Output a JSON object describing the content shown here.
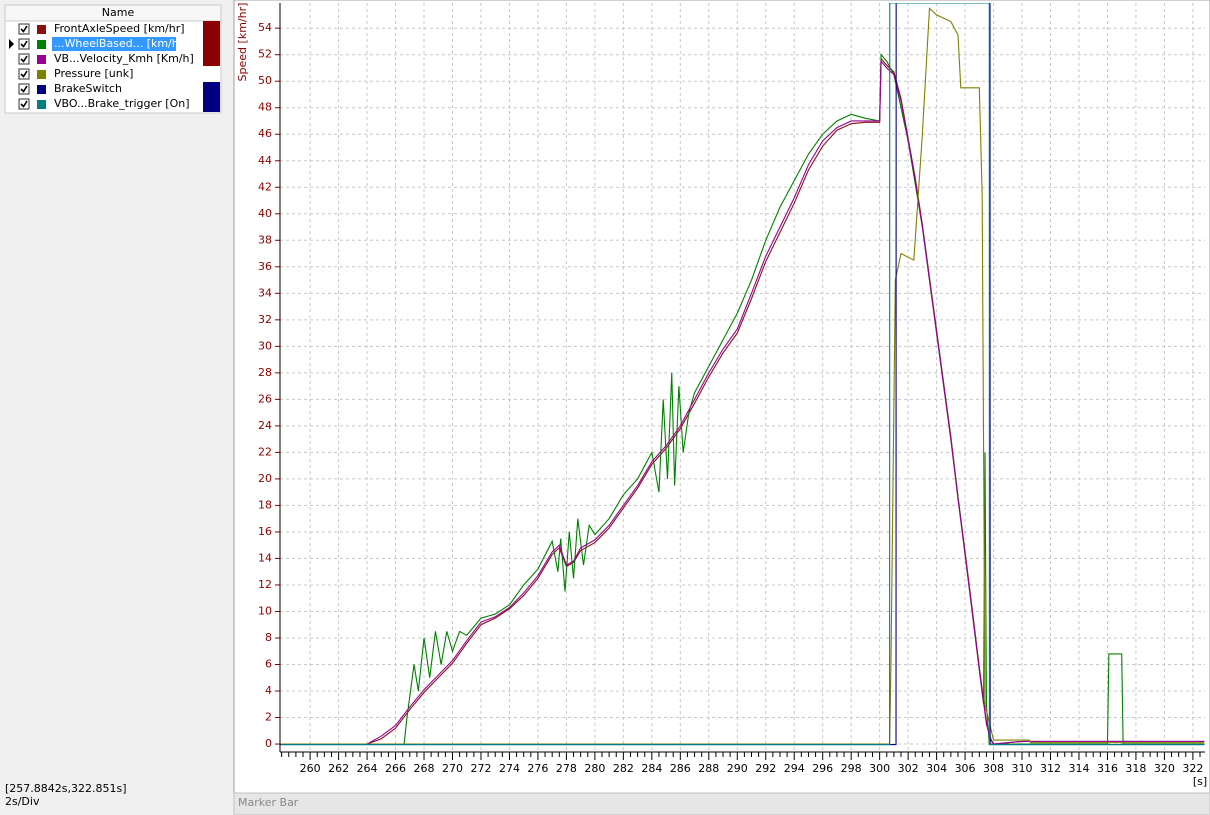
{
  "channel_list_header": "Name",
  "selected_row": 1,
  "status": {
    "range": "[257.8842s,322.851s]",
    "scale": "2s/Div"
  },
  "marker_bar": "Marker Bar",
  "chart_data": {
    "type": "line",
    "y_label": "Speed [km/hr]",
    "x_label": "[s]",
    "axis_color": "#8b0000",
    "grid": true,
    "xlim": [
      257.8842,
      322.851
    ],
    "ylim": [
      -0.6,
      55.9
    ],
    "y2lim": [
      -0.01,
      1
    ],
    "xticks": [
      260,
      262,
      264,
      266,
      268,
      270,
      272,
      274,
      276,
      278,
      280,
      282,
      284,
      286,
      288,
      290,
      292,
      294,
      296,
      298,
      300,
      302,
      304,
      306,
      308,
      310,
      312,
      314,
      316,
      318,
      320,
      322
    ],
    "yticks": [
      0,
      2,
      4,
      6,
      8,
      10,
      12,
      14,
      16,
      18,
      20,
      22,
      24,
      26,
      28,
      30,
      32,
      34,
      36,
      38,
      40,
      42,
      44,
      46,
      48,
      50,
      52,
      54
    ],
    "series": [
      {
        "name": "FrontAxleSpeed [km/hr]",
        "color": "#8b1010",
        "checked": true,
        "x": [
          257.9,
          264,
          265,
          266,
          267,
          268,
          269,
          270,
          271,
          272,
          273,
          274,
          275,
          276,
          277,
          277.5,
          278,
          278.5,
          279,
          280,
          281,
          282,
          283,
          284,
          285,
          286,
          287,
          288,
          289,
          290,
          291,
          292,
          293,
          294,
          295,
          296,
          297,
          298,
          299,
          300,
          300.1,
          300.5,
          301,
          301.5,
          302,
          302.5,
          303,
          303.5,
          304,
          304.5,
          305,
          305.5,
          306,
          306.5,
          307,
          307.5,
          307.8,
          308,
          310,
          322.8
        ],
        "values": [
          0,
          0,
          0.4,
          1.2,
          2.6,
          3.9,
          5.0,
          6.1,
          7.6,
          9.0,
          9.5,
          10.2,
          11.2,
          12.5,
          14.3,
          14.8,
          13.4,
          13.7,
          14.6,
          15.2,
          16.3,
          17.8,
          19.3,
          21.1,
          22.3,
          23.8,
          25.7,
          27.7,
          29.5,
          31.0,
          33.6,
          36.4,
          38.6,
          40.8,
          43.3,
          45.1,
          46.3,
          46.8,
          46.9,
          46.9,
          51.7,
          51.2,
          50.7,
          48.7,
          45.7,
          42.7,
          39.2,
          35.2,
          31.2,
          27.2,
          23.2,
          18.7,
          14.5,
          10.2,
          5.8,
          1.7,
          0.4,
          0,
          0.2,
          0.2
        ]
      },
      {
        "name": "...WheelBased... [km/hr]",
        "color": "#008000",
        "checked": true,
        "x": [
          257.9,
          266.6,
          266.8,
          267.3,
          267.6,
          268,
          268.4,
          268.8,
          269.2,
          269.6,
          270,
          270.5,
          271,
          272,
          273,
          274,
          275,
          276,
          277,
          277.4,
          277.6,
          277.9,
          278.2,
          278.5,
          278.8,
          279.2,
          279.6,
          280,
          281,
          282,
          283,
          284,
          284.5,
          284.8,
          285.1,
          285.4,
          285.6,
          285.9,
          286.2,
          286.6,
          287,
          288,
          289,
          290,
          291,
          292,
          293,
          294,
          295,
          296,
          297,
          298,
          299,
          300,
          300.1,
          300.5,
          301,
          302,
          303,
          304,
          305,
          306,
          307,
          307.3,
          307.4,
          307.5,
          307.7,
          316,
          316.1,
          317,
          317.1,
          322.8
        ],
        "values": [
          0,
          0,
          2,
          6,
          4,
          8,
          5,
          8.5,
          6,
          8.5,
          7,
          8.5,
          8.2,
          9.5,
          9.8,
          10.5,
          12,
          13.2,
          15.3,
          13,
          15.5,
          11.5,
          16,
          12.5,
          17,
          13.5,
          16.5,
          15.8,
          17,
          18.8,
          20,
          22,
          19,
          26,
          20,
          28,
          19.5,
          27,
          22,
          25,
          26.5,
          28.5,
          30.5,
          32.5,
          35,
          38,
          40.5,
          42.5,
          44.5,
          46,
          47,
          47.5,
          47.2,
          47,
          52,
          51.5,
          50.5,
          45.5,
          39,
          31,
          23,
          14.3,
          5.6,
          3,
          22,
          3,
          0,
          0,
          6.8,
          6.8,
          0,
          0
        ]
      },
      {
        "name": "VB...Velocity_Kmh [Km/h]",
        "color": "#990099",
        "checked": true,
        "x": [
          257.9,
          264,
          265,
          266,
          267,
          268,
          269,
          270,
          271,
          272,
          273,
          274,
          275,
          276,
          277,
          277.5,
          278,
          278.5,
          279,
          280,
          281,
          282,
          283,
          284,
          285,
          286,
          287,
          288,
          289,
          290,
          291,
          292,
          293,
          294,
          295,
          296,
          297,
          298,
          299,
          300,
          300.1,
          300.5,
          301,
          301.5,
          302,
          302.5,
          303,
          303.5,
          304,
          304.5,
          305,
          305.5,
          306,
          306.5,
          307,
          307.5,
          307.8,
          308,
          310,
          322.8
        ],
        "values": [
          0,
          0,
          0.6,
          1.4,
          2.8,
          4.1,
          5.2,
          6.3,
          7.8,
          9.2,
          9.6,
          10.3,
          11.4,
          12.7,
          14.5,
          15,
          13.5,
          13.8,
          14.8,
          15.4,
          16.5,
          18,
          19.5,
          21.3,
          22.5,
          24,
          26,
          28,
          29.8,
          31.3,
          34,
          36.8,
          39,
          41.2,
          43.7,
          45.5,
          46.5,
          47,
          47,
          47,
          51.5,
          51,
          50.5,
          48.5,
          45.5,
          42.5,
          39,
          35,
          31,
          27,
          23,
          18.5,
          14.3,
          10,
          5.6,
          1.5,
          0.3,
          0,
          0.2,
          0.2
        ]
      },
      {
        "name": "Pressure [unk]",
        "color": "#808000",
        "checked": true,
        "x": [
          257.9,
          300.7,
          300.8,
          301.1,
          301.5,
          302.4,
          303,
          303.5,
          304,
          305,
          305.5,
          305.7,
          307,
          307.2,
          307.4,
          308,
          310.5,
          310.6,
          322.8
        ],
        "values": [
          0,
          0,
          6.5,
          35,
          37,
          36.5,
          46,
          55.5,
          55,
          54.5,
          53.5,
          49.5,
          49.5,
          41.5,
          3,
          0.3,
          0.3,
          0.1,
          0.1
        ]
      },
      {
        "name": "BrakeSwitch",
        "color": "#000080",
        "checked": true,
        "axis": "y2",
        "x": [
          257.9,
          301.15,
          301.16,
          307.75,
          307.76,
          322.8
        ],
        "values": [
          0,
          0,
          1,
          1,
          0,
          0
        ]
      },
      {
        "name": "VBO...Brake_trigger [On]",
        "color": "#008080",
        "checked": true,
        "axis": "y2",
        "x": [
          257.9,
          300.7,
          300.71,
          307.7,
          307.71,
          322.8
        ],
        "values": [
          0,
          0,
          1,
          1,
          0,
          0
        ]
      }
    ]
  }
}
